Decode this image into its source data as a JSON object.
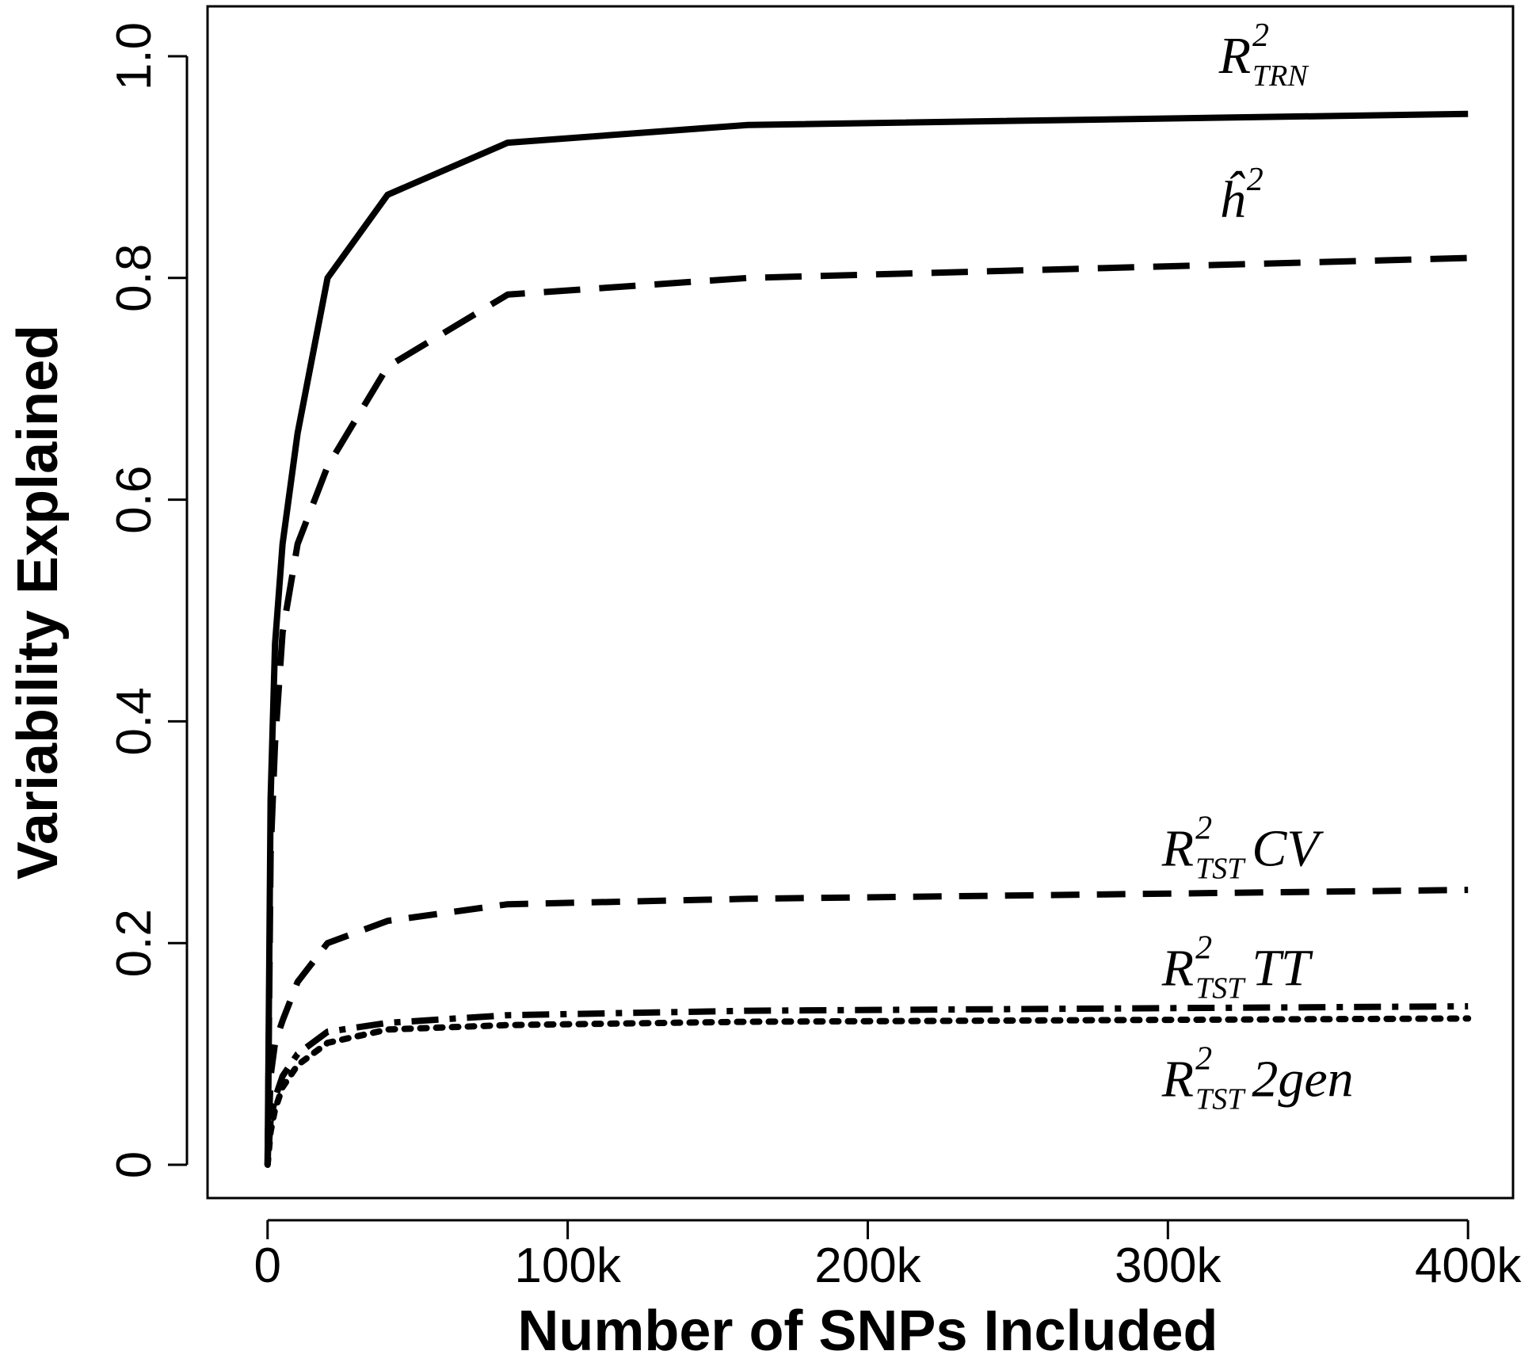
{
  "chart_data": {
    "type": "line",
    "xlabel": "Number of SNPs Included",
    "ylabel": "Variability Explained",
    "xlim": [
      -20000,
      415000
    ],
    "ylim": [
      -0.03,
      1.045
    ],
    "grid": false,
    "legend": "none",
    "x_ticks": [
      {
        "value": 0,
        "label": "0"
      },
      {
        "value": 100000,
        "label": "100k"
      },
      {
        "value": 200000,
        "label": "200k"
      },
      {
        "value": 300000,
        "label": "300k"
      },
      {
        "value": 400000,
        "label": "400k"
      }
    ],
    "y_ticks": [
      {
        "value": 0,
        "label": "0"
      },
      {
        "value": 0.2,
        "label": "0.2"
      },
      {
        "value": 0.4,
        "label": "0.4"
      },
      {
        "value": 0.6,
        "label": "0.6"
      },
      {
        "value": 0.8,
        "label": "0.8"
      },
      {
        "value": 1.0,
        "label": "1.0"
      }
    ],
    "x": [
      0,
      1000,
      2500,
      5000,
      10000,
      20000,
      40000,
      80000,
      160000,
      400000
    ],
    "series": [
      {
        "id": "r2-trn",
        "label": {
          "main": "R",
          "sup": "2",
          "sub": "TRN",
          "suffix": ""
        },
        "style": "solid",
        "label_anchor": [
          317000,
          0.985
        ],
        "values": [
          0.0,
          0.33,
          0.47,
          0.56,
          0.66,
          0.8,
          0.875,
          0.922,
          0.938,
          0.948
        ]
      },
      {
        "id": "h2-hat",
        "label": {
          "main": "ĥ",
          "sup": "2",
          "sub": "",
          "suffix": ""
        },
        "style": "longdash",
        "label_anchor": [
          317000,
          0.855
        ],
        "values": [
          0.0,
          0.28,
          0.38,
          0.48,
          0.56,
          0.63,
          0.72,
          0.785,
          0.8,
          0.818
        ]
      },
      {
        "id": "r2-tst-cv",
        "label": {
          "main": "R",
          "sup": "2",
          "sub": "TST",
          "suffix": "CV"
        },
        "style": "dashed",
        "label_anchor": [
          298000,
          0.27
        ],
        "values": [
          0.0,
          0.08,
          0.11,
          0.13,
          0.165,
          0.2,
          0.22,
          0.235,
          0.24,
          0.248
        ]
      },
      {
        "id": "r2-tst-tt",
        "label": {
          "main": "R",
          "sup": "2",
          "sub": "TST",
          "suffix": "TT"
        },
        "style": "dotdash",
        "label_anchor": [
          298000,
          0.162
        ],
        "values": [
          0.0,
          0.04,
          0.06,
          0.08,
          0.1,
          0.12,
          0.128,
          0.135,
          0.139,
          0.143
        ]
      },
      {
        "id": "r2-tst-2gen",
        "label": {
          "main": "R",
          "sup": "2",
          "sub": "TST",
          "suffix": "2gen"
        },
        "style": "dotted",
        "label_anchor": [
          298000,
          0.062
        ],
        "values": [
          0.0,
          0.03,
          0.05,
          0.07,
          0.09,
          0.11,
          0.122,
          0.126,
          0.129,
          0.132
        ]
      }
    ]
  }
}
